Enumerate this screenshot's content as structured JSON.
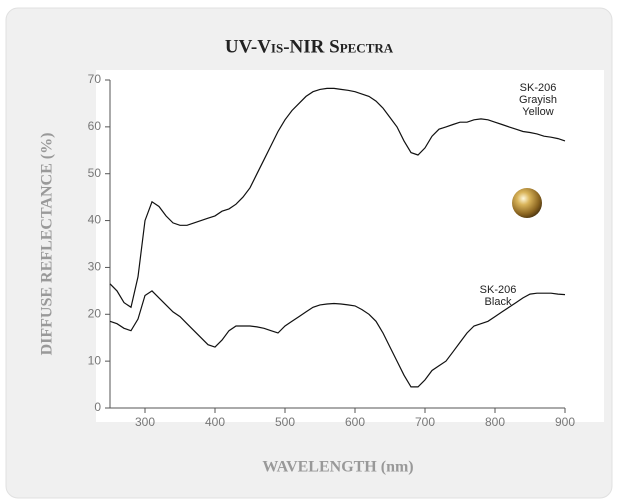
{
  "chart_data": {
    "type": "line",
    "title": "UV-Vis-NIR Spectra",
    "x_label": "WAVELENGTH (nm)",
    "y_label": "DIFFUSE REFLECTANCE (%)",
    "x": [
      250,
      260,
      270,
      280,
      290,
      300,
      310,
      320,
      330,
      340,
      350,
      360,
      370,
      380,
      390,
      400,
      410,
      420,
      430,
      440,
      450,
      460,
      470,
      480,
      490,
      500,
      510,
      520,
      530,
      540,
      550,
      560,
      570,
      580,
      590,
      600,
      610,
      620,
      630,
      640,
      650,
      660,
      670,
      680,
      690,
      700,
      710,
      720,
      730,
      740,
      750,
      760,
      770,
      780,
      790,
      800,
      810,
      820,
      830,
      840,
      850,
      860,
      870,
      880,
      890,
      900
    ],
    "series": [
      {
        "name": "SK-206 Grayish Yellow",
        "color": "#111111",
        "values": [
          26.5,
          25,
          22.5,
          21.5,
          28,
          40,
          44,
          43,
          41,
          39.5,
          39,
          39,
          39.5,
          40,
          40.5,
          41,
          42,
          42.5,
          43.5,
          45,
          47,
          50,
          53,
          56,
          59,
          61.5,
          63.5,
          65,
          66.5,
          67.5,
          68,
          68.2,
          68.2,
          68,
          67.8,
          67.5,
          67,
          66.5,
          65.5,
          64,
          62,
          60,
          57,
          54.5,
          54,
          55.5,
          58,
          59.5,
          60,
          60.5,
          61,
          61,
          61.5,
          61.7,
          61.5,
          61,
          60.5,
          60,
          59.5,
          59,
          58.8,
          58.5,
          58,
          57.8,
          57.5,
          57
        ]
      },
      {
        "name": "SK-206 Black",
        "color": "#111111",
        "values": [
          18.5,
          18,
          17,
          16.5,
          19,
          24,
          25,
          23.5,
          22,
          20.5,
          19.5,
          18,
          16.5,
          15,
          13.5,
          13,
          14.5,
          16.5,
          17.5,
          17.5,
          17.5,
          17.3,
          17,
          16.5,
          16,
          17.5,
          18.5,
          19.5,
          20.5,
          21.5,
          22,
          22.2,
          22.3,
          22.2,
          22,
          21.8,
          21,
          20,
          18.5,
          16,
          13,
          10,
          7,
          4.5,
          4.5,
          6,
          8,
          9,
          10,
          12,
          14,
          16,
          17.5,
          18,
          18.5,
          19.5,
          20.5,
          21.5,
          22.5,
          23.5,
          24.3,
          24.5,
          24.5,
          24.5,
          24.3,
          24.2
        ]
      }
    ],
    "xlim": [
      250,
      900
    ],
    "xticks": [
      300,
      400,
      500,
      600,
      700,
      800,
      900
    ],
    "ylim": [
      0,
      70
    ],
    "yticks": [
      0,
      10,
      20,
      30,
      40,
      50,
      60,
      70
    ]
  }
}
